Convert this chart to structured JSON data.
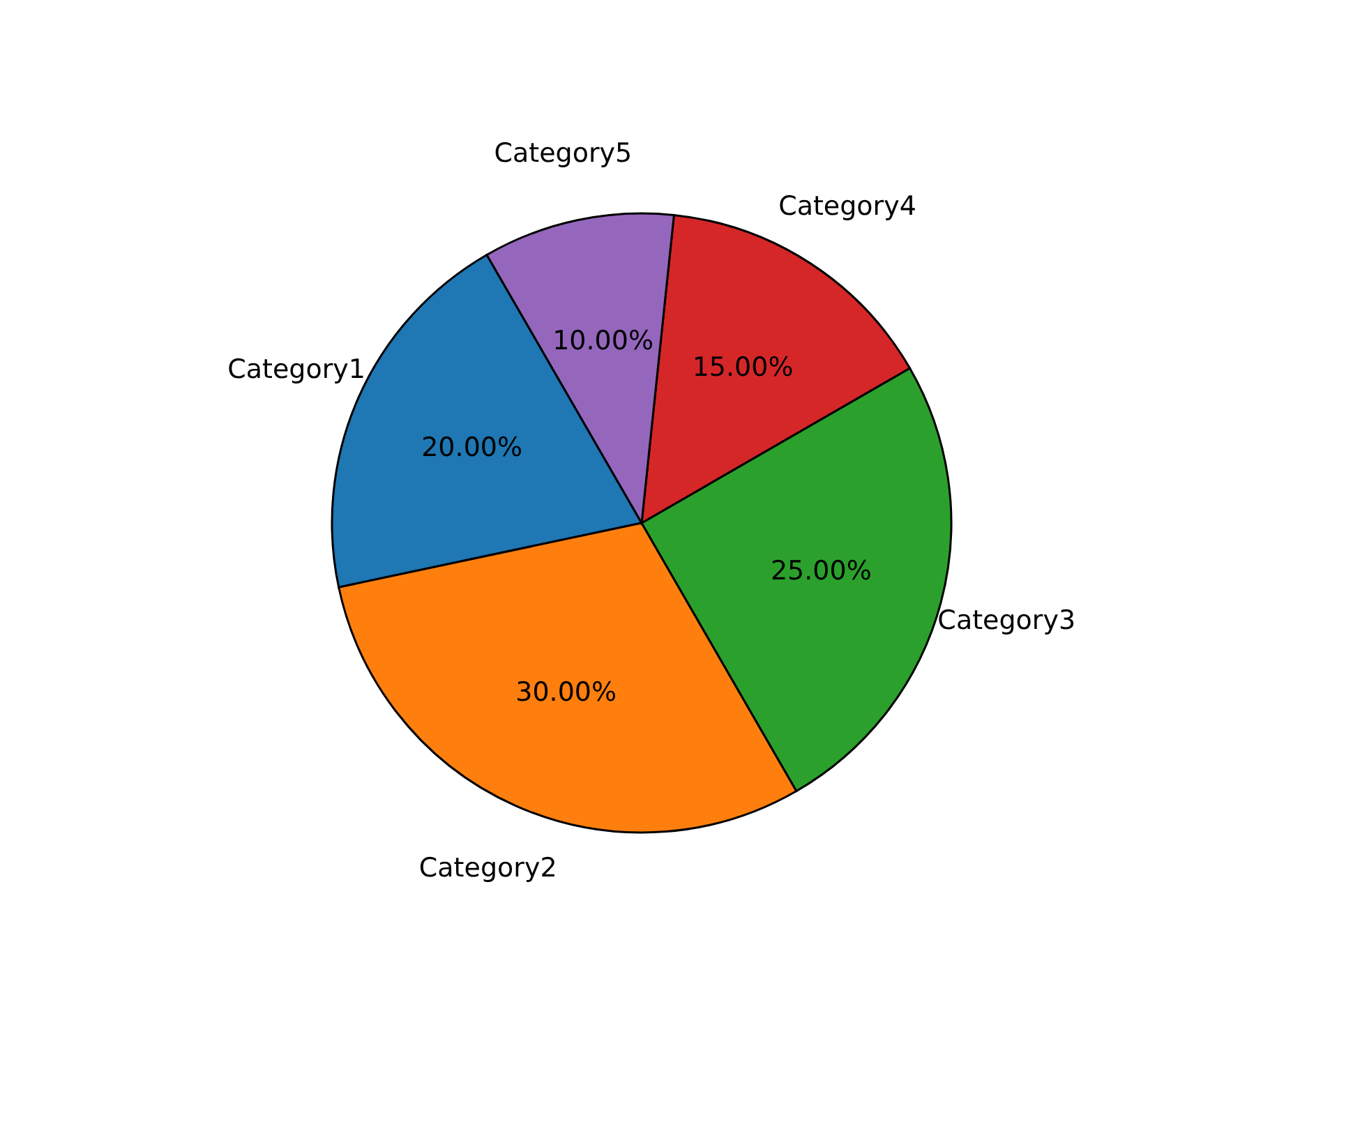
{
  "chart_data": {
    "type": "pie",
    "categories": [
      "Category1",
      "Category2",
      "Category3",
      "Category4",
      "Category5"
    ],
    "values": [
      20,
      30,
      25,
      15,
      10
    ],
    "colors": [
      "#1f77b4",
      "#ff7f0e",
      "#2ca02c",
      "#d62728",
      "#9467bd"
    ],
    "value_labels": [
      "20.00%",
      "30.00%",
      "25.00%",
      "15.00%",
      "10.00%"
    ]
  }
}
